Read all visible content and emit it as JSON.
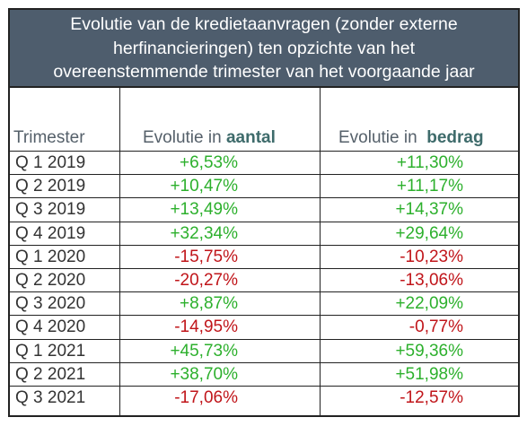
{
  "title_lines": [
    "Evolutie van de kredietaanvragen (zonder externe",
    "herfinancieringen) ten opzichte van het",
    "overeenstemmende trimester van het voorgaande jaar"
  ],
  "headers": {
    "trimester": "Trimester",
    "aantal_prefix": "Evolutie in ",
    "aantal_bold": "aantal",
    "bedrag_prefix": "Evolutie in  ",
    "bedrag_bold": "bedrag"
  },
  "colors": {
    "header_band": "#4e5d6d",
    "positive": "#2db02d",
    "negative": "#c0151a"
  },
  "rows": [
    {
      "q": "Q 1 2019",
      "aantal": "+6,53%",
      "bedrag": "+11,30%"
    },
    {
      "q": "Q 2 2019",
      "aantal": "+10,47%",
      "bedrag": "+11,17%"
    },
    {
      "q": "Q 3 2019",
      "aantal": "+13,49%",
      "bedrag": "+14,37%"
    },
    {
      "q": "Q 4 2019",
      "aantal": "+32,34%",
      "bedrag": "+29,64%"
    },
    {
      "q": "Q 1 2020",
      "aantal": "-15,75%",
      "bedrag": "-10,23%"
    },
    {
      "q": "Q 2 2020",
      "aantal": "-20,27%",
      "bedrag": "-13,06%"
    },
    {
      "q": "Q 3 2020",
      "aantal": "+8,87%",
      "bedrag": "+22,09%"
    },
    {
      "q": "Q 4 2020",
      "aantal": "-14,95%",
      "bedrag": "-0,77%"
    },
    {
      "q": "Q 1 2021",
      "aantal": "+45,73%",
      "bedrag": "+59,36%"
    },
    {
      "q": "Q 2 2021",
      "aantal": "+38,70%",
      "bedrag": "+51,98%"
    },
    {
      "q": "Q 3 2021",
      "aantal": "-17,06%",
      "bedrag": "-12,57%"
    }
  ]
}
